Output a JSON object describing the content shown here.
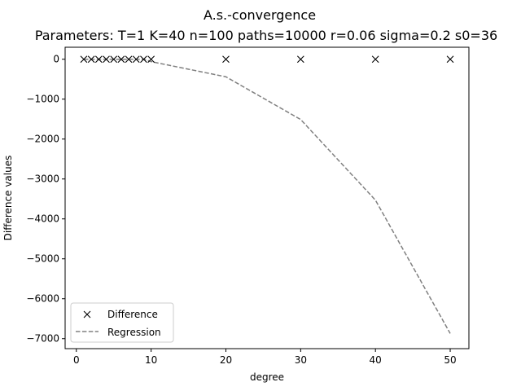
{
  "chart_data": {
    "type": "line",
    "title": "A.s.-convergence",
    "subtitle": "Parameters: T=1 K=40 n=100 paths=10000 r=0.06 sigma=0.2 s0=36",
    "xlabel": "degree",
    "ylabel": "Difference values",
    "xlim": [
      -1.5,
      52.5
    ],
    "ylim": [
      -7250,
      300
    ],
    "xticks": [
      0,
      10,
      20,
      30,
      40,
      50
    ],
    "yticks": [
      0,
      -1000,
      -2000,
      -3000,
      -4000,
      -5000,
      -6000,
      -7000
    ],
    "xtick_labels": [
      "0",
      "10",
      "20",
      "30",
      "40",
      "50"
    ],
    "ytick_labels": [
      "0",
      "−1000",
      "−2000",
      "−3000",
      "−4000",
      "−5000",
      "−6000",
      "−7000"
    ],
    "grid": false,
    "legend_position": "lower-left",
    "x": [
      1,
      2,
      3,
      4,
      5,
      6,
      7,
      8,
      9,
      10,
      20,
      30,
      40,
      50
    ],
    "series": [
      {
        "name": "Difference",
        "marker": "x",
        "color": "#000000",
        "values": [
          0,
          0,
          0,
          0,
          0,
          0,
          0,
          0,
          0,
          0,
          0,
          0,
          0,
          0
        ]
      },
      {
        "name": "Regression",
        "style": "dashed",
        "color": "#808080",
        "values": [
          0,
          0,
          0,
          0,
          0,
          0,
          0,
          0,
          0,
          -60,
          -440,
          -1510,
          -3530,
          -6870
        ]
      }
    ]
  }
}
